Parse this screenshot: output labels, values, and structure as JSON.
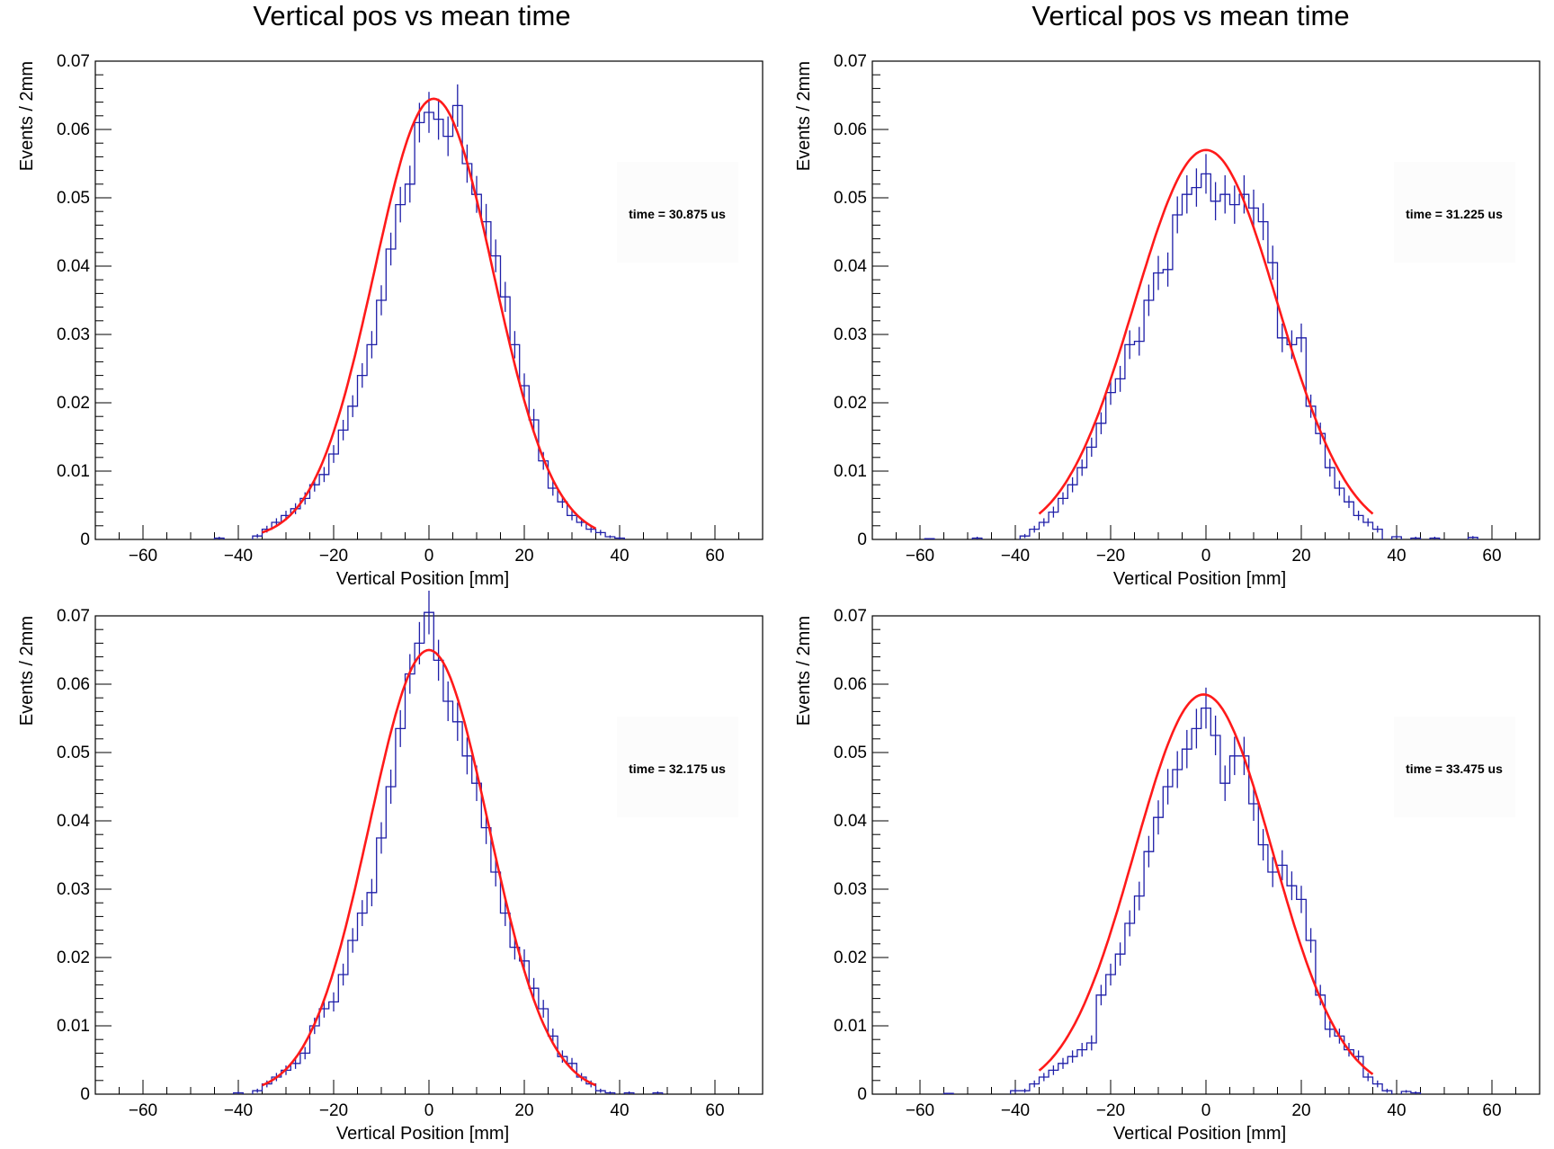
{
  "headings": {
    "left": "Vertical pos vs mean time",
    "right": "Vertical pos vs mean time"
  },
  "colors": {
    "histogram": "#1f1fa8",
    "fit": "#ff1a1a"
  },
  "chart_data": [
    {
      "type": "line",
      "title": "",
      "xlabel": "Vertical Position [mm]",
      "ylabel": "Events / 2mm",
      "xlim": [
        -70,
        70
      ],
      "ylim": [
        0,
        0.07
      ],
      "xticks": [
        "−60",
        "−40",
        "−20",
        "0",
        "20",
        "40",
        "60"
      ],
      "yticks": [
        "0",
        "0.01",
        "0.02",
        "0.03",
        "0.04",
        "0.05",
        "0.06",
        "0.07"
      ],
      "annotation": "time = 30.875 us",
      "grid": false,
      "series": [
        {
          "kind": "histogram",
          "x": [
            -44,
            -36,
            -34,
            -32,
            -30,
            -28,
            -26,
            -24,
            -22,
            -20,
            -18,
            -16,
            -14,
            -12,
            -10,
            -8,
            -6,
            -4,
            -2,
            0,
            2,
            4,
            6,
            8,
            10,
            12,
            14,
            16,
            18,
            20,
            22,
            24,
            26,
            28,
            30,
            32,
            34,
            36,
            38,
            40
          ],
          "values": [
            0.0002,
            0.0005,
            0.0015,
            0.0025,
            0.0035,
            0.0045,
            0.006,
            0.008,
            0.0095,
            0.0125,
            0.016,
            0.0195,
            0.024,
            0.0285,
            0.035,
            0.0425,
            0.049,
            0.052,
            0.061,
            0.0625,
            0.0615,
            0.059,
            0.0635,
            0.055,
            0.0505,
            0.0465,
            0.0415,
            0.0355,
            0.0285,
            0.0225,
            0.0175,
            0.0115,
            0.0075,
            0.0055,
            0.0035,
            0.0025,
            0.0015,
            0.001,
            0.0004,
            0.0002
          ],
          "errors": [
            0.0002,
            0.0003,
            0.0005,
            0.0006,
            0.0007,
            0.0008,
            0.0009,
            0.001,
            0.0011,
            0.0013,
            0.0015,
            0.0016,
            0.0018,
            0.002,
            0.0022,
            0.0024,
            0.0026,
            0.0027,
            0.0029,
            0.003,
            0.003,
            0.0029,
            0.0031,
            0.0028,
            0.0027,
            0.0026,
            0.0024,
            0.0022,
            0.002,
            0.0018,
            0.0016,
            0.0013,
            0.0011,
            0.0009,
            0.0007,
            0.0006,
            0.0005,
            0.0004,
            0.0002,
            0.0002
          ]
        },
        {
          "kind": "fit",
          "function": "gaussian",
          "amplitude": 0.0645,
          "mean": 1.0,
          "sigma": 12.5,
          "range": [
            -35,
            35
          ]
        }
      ]
    },
    {
      "type": "line",
      "title": "",
      "xlabel": "Vertical Position [mm]",
      "ylabel": "Events / 2mm",
      "xlim": [
        -70,
        70
      ],
      "ylim": [
        0,
        0.07
      ],
      "xticks": [
        "−60",
        "−40",
        "−20",
        "0",
        "20",
        "40",
        "60"
      ],
      "yticks": [
        "0",
        "0.01",
        "0.02",
        "0.03",
        "0.04",
        "0.05",
        "0.06",
        "0.07"
      ],
      "annotation": "time = 31.225 us",
      "grid": false,
      "series": [
        {
          "kind": "histogram",
          "x": [
            -58,
            -48,
            -38,
            -36,
            -34,
            -32,
            -30,
            -28,
            -26,
            -24,
            -22,
            -20,
            -18,
            -16,
            -14,
            -12,
            -10,
            -8,
            -6,
            -4,
            -2,
            0,
            2,
            4,
            6,
            8,
            10,
            12,
            14,
            16,
            18,
            20,
            22,
            24,
            26,
            28,
            30,
            32,
            34,
            36,
            40,
            44,
            48,
            56
          ],
          "values": [
            0.0001,
            0.0002,
            0.0005,
            0.0015,
            0.0025,
            0.004,
            0.006,
            0.008,
            0.0105,
            0.0135,
            0.017,
            0.0215,
            0.0235,
            0.0285,
            0.029,
            0.035,
            0.039,
            0.0395,
            0.0475,
            0.0505,
            0.0515,
            0.0535,
            0.0495,
            0.0505,
            0.049,
            0.0505,
            0.0485,
            0.0465,
            0.0405,
            0.0295,
            0.0285,
            0.0295,
            0.0195,
            0.0155,
            0.0105,
            0.0075,
            0.0055,
            0.0035,
            0.0025,
            0.0015,
            0.0004,
            0.0002,
            0.0002,
            0.0003
          ],
          "errors": [
            0.0001,
            0.0002,
            0.0003,
            0.0005,
            0.0006,
            0.0008,
            0.0009,
            0.0011,
            0.0012,
            0.0014,
            0.0016,
            0.0018,
            0.0019,
            0.0021,
            0.0021,
            0.0023,
            0.0025,
            0.0025,
            0.0027,
            0.0028,
            0.0028,
            0.0029,
            0.0028,
            0.0028,
            0.0028,
            0.0028,
            0.0027,
            0.0027,
            0.0025,
            0.0021,
            0.0021,
            0.0021,
            0.0017,
            0.0016,
            0.0013,
            0.0011,
            0.0009,
            0.0007,
            0.0006,
            0.0005,
            0.0002,
            0.0002,
            0.0002,
            0.0002
          ]
        },
        {
          "kind": "fit",
          "function": "gaussian",
          "amplitude": 0.057,
          "mean": 0.0,
          "sigma": 15.0,
          "range": [
            -35,
            35
          ]
        }
      ]
    },
    {
      "type": "line",
      "title": "",
      "xlabel": "Vertical Position [mm]",
      "ylabel": "Events / 2mm",
      "xlim": [
        -70,
        70
      ],
      "ylim": [
        0,
        0.07
      ],
      "xticks": [
        "−60",
        "−40",
        "−20",
        "0",
        "20",
        "40",
        "60"
      ],
      "yticks": [
        "0",
        "0.01",
        "0.02",
        "0.03",
        "0.04",
        "0.05",
        "0.06",
        "0.07"
      ],
      "annotation": "time = 32.175 us",
      "grid": false,
      "series": [
        {
          "kind": "histogram",
          "x": [
            -40,
            -36,
            -34,
            -32,
            -30,
            -28,
            -26,
            -24,
            -22,
            -20,
            -18,
            -16,
            -14,
            -12,
            -10,
            -8,
            -6,
            -4,
            -2,
            0,
            2,
            4,
            6,
            8,
            10,
            12,
            14,
            16,
            18,
            20,
            22,
            24,
            26,
            28,
            30,
            32,
            34,
            36,
            38,
            42,
            48
          ],
          "values": [
            0.0002,
            0.0005,
            0.0015,
            0.0025,
            0.0035,
            0.0045,
            0.006,
            0.01,
            0.0125,
            0.0135,
            0.0175,
            0.0225,
            0.0265,
            0.0295,
            0.0375,
            0.045,
            0.0535,
            0.0615,
            0.066,
            0.0705,
            0.0635,
            0.0575,
            0.0545,
            0.0495,
            0.0455,
            0.039,
            0.0325,
            0.0265,
            0.0215,
            0.0195,
            0.0155,
            0.0125,
            0.0085,
            0.0055,
            0.0045,
            0.0025,
            0.0015,
            0.0005,
            0.0002,
            0.0002,
            0.0002
          ],
          "errors": [
            0.0002,
            0.0003,
            0.0005,
            0.0006,
            0.0007,
            0.0008,
            0.0009,
            0.0012,
            0.0013,
            0.0014,
            0.0016,
            0.0018,
            0.0019,
            0.002,
            0.0023,
            0.0025,
            0.0027,
            0.0029,
            0.0031,
            0.0032,
            0.003,
            0.0029,
            0.0028,
            0.0027,
            0.0026,
            0.0024,
            0.0021,
            0.0019,
            0.0018,
            0.0017,
            0.0015,
            0.0013,
            0.0011,
            0.0009,
            0.0008,
            0.0006,
            0.0005,
            0.0003,
            0.0002,
            0.0002,
            0.0002
          ]
        },
        {
          "kind": "fit",
          "function": "gaussian",
          "amplitude": 0.065,
          "mean": 0.0,
          "sigma": 12.5,
          "range": [
            -35,
            35
          ]
        }
      ]
    },
    {
      "type": "line",
      "title": "",
      "xlabel": "Vertical Position [mm]",
      "ylabel": "Events / 2mm",
      "xlim": [
        -70,
        70
      ],
      "ylim": [
        0,
        0.07
      ],
      "xticks": [
        "−60",
        "−40",
        "−20",
        "0",
        "20",
        "40",
        "60"
      ],
      "yticks": [
        "0",
        "0.01",
        "0.02",
        "0.03",
        "0.04",
        "0.05",
        "0.06",
        "0.07"
      ],
      "annotation": "time = 33.475 us",
      "grid": false,
      "series": [
        {
          "kind": "histogram",
          "x": [
            -54,
            -40,
            -38,
            -36,
            -34,
            -32,
            -30,
            -28,
            -26,
            -24,
            -22,
            -20,
            -18,
            -16,
            -14,
            -12,
            -10,
            -8,
            -6,
            -4,
            -2,
            0,
            2,
            4,
            6,
            8,
            10,
            12,
            14,
            16,
            18,
            20,
            22,
            24,
            26,
            28,
            30,
            32,
            34,
            36,
            38,
            42,
            44
          ],
          "values": [
            0.0001,
            0.0005,
            0.0005,
            0.0015,
            0.0025,
            0.0035,
            0.0045,
            0.0055,
            0.0065,
            0.0075,
            0.0145,
            0.0175,
            0.0205,
            0.025,
            0.029,
            0.0355,
            0.0405,
            0.045,
            0.0475,
            0.0505,
            0.0535,
            0.0565,
            0.0525,
            0.0455,
            0.0495,
            0.0495,
            0.0425,
            0.0365,
            0.0325,
            0.0335,
            0.0305,
            0.0285,
            0.0225,
            0.0145,
            0.0095,
            0.0085,
            0.0065,
            0.0055,
            0.0025,
            0.0015,
            0.0005,
            0.0004,
            0.0002
          ],
          "errors": [
            0.0001,
            0.0003,
            0.0003,
            0.0005,
            0.0006,
            0.0007,
            0.0008,
            0.0009,
            0.001,
            0.0011,
            0.0015,
            0.0016,
            0.0017,
            0.0019,
            0.0021,
            0.0023,
            0.0025,
            0.0026,
            0.0027,
            0.0028,
            0.0029,
            0.003,
            0.0029,
            0.0026,
            0.0028,
            0.0028,
            0.0025,
            0.0023,
            0.0022,
            0.0022,
            0.0021,
            0.002,
            0.0018,
            0.0015,
            0.0012,
            0.0011,
            0.001,
            0.0009,
            0.0006,
            0.0005,
            0.0003,
            0.0002,
            0.0002
          ]
        },
        {
          "kind": "fit",
          "function": "gaussian",
          "amplitude": 0.0585,
          "mean": -0.5,
          "sigma": 14.5,
          "range": [
            -35,
            35
          ]
        }
      ]
    }
  ]
}
